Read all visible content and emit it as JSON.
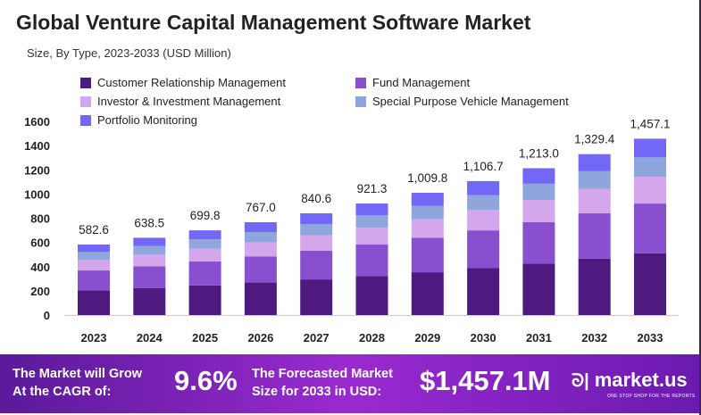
{
  "chart_data": {
    "type": "stacked-bar",
    "title": "Global Venture Capital Management Software Market",
    "subtitle": "Size, By Type, 2023-2033 (USD Million)",
    "categories": [
      "2023",
      "2024",
      "2025",
      "2026",
      "2027",
      "2028",
      "2029",
      "2030",
      "2031",
      "2032",
      "2033"
    ],
    "totals": [
      "582.6",
      "638.5",
      "699.8",
      "767.0",
      "840.6",
      "921.3",
      "1,009.8",
      "1,106.7",
      "1,213.0",
      "1,329.4",
      "1,457.1"
    ],
    "series": [
      {
        "name": "Customer Relationship Management",
        "color": "#4e1a80",
        "values": [
          203.9,
          223.5,
          244.9,
          268.5,
          294.2,
          322.5,
          353.4,
          387.3,
          424.6,
          465.3,
          510.0
        ]
      },
      {
        "name": "Fund Management",
        "color": "#8a4fcf",
        "values": [
          164.3,
          180.1,
          197.3,
          216.3,
          237.0,
          259.8,
          284.8,
          312.1,
          342.1,
          374.9,
          410.9
        ]
      },
      {
        "name": "Investor & Investment Management",
        "color": "#d4a6ec",
        "values": [
          88.6,
          97.1,
          106.4,
          116.6,
          127.8,
          140.0,
          153.5,
          168.2,
          184.4,
          202.1,
          221.5
        ]
      },
      {
        "name": "Special Purpose Vehicle Management",
        "color": "#8fa6dc",
        "values": [
          64.1,
          70.2,
          77.0,
          84.4,
          92.5,
          101.3,
          111.1,
          121.7,
          133.4,
          146.2,
          160.3
        ]
      },
      {
        "name": "Portfolio Monitoring",
        "color": "#7268f5",
        "values": [
          61.7,
          67.6,
          74.2,
          81.2,
          89.1,
          97.7,
          107.0,
          117.4,
          128.5,
          140.9,
          154.4
        ]
      }
    ],
    "ylim": [
      0,
      1600
    ],
    "yticks": [
      "0",
      "200",
      "400",
      "600",
      "800",
      "1000",
      "1200",
      "1400",
      "1600"
    ],
    "grid": false,
    "legend_position": "top"
  },
  "banner": {
    "cagr_label_1": "The Market will Grow",
    "cagr_label_2": "At the CAGR of:",
    "cagr_value": "9.6%",
    "forecast_label_1": "The Forecasted Market",
    "forecast_label_2": "Size for 2033 in USD:",
    "forecast_value": "$1,457.1M",
    "brand": "market.us",
    "brand_tagline": "ONE STOP SHOP FOR THE REPORTS"
  }
}
